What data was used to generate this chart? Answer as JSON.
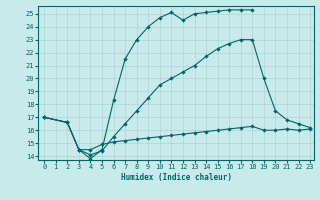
{
  "xlabel": "Humidex (Indice chaleur)",
  "bg_color": "#c8eaea",
  "grid_color": "#a8cccc",
  "line_color": "#006666",
  "spine_color": "#006666",
  "xlim_min": -0.5,
  "xlim_max": 23.3,
  "ylim_min": 13.7,
  "ylim_max": 25.6,
  "yticks": [
    14,
    15,
    16,
    17,
    18,
    19,
    20,
    21,
    22,
    23,
    24,
    25
  ],
  "xticks": [
    0,
    1,
    2,
    3,
    4,
    5,
    6,
    7,
    8,
    9,
    10,
    11,
    12,
    13,
    14,
    15,
    16,
    17,
    18,
    19,
    20,
    21,
    22,
    23
  ],
  "line1_x": [
    0,
    2,
    3,
    4,
    5,
    6,
    7,
    8,
    9,
    10,
    11,
    12,
    13,
    14,
    15,
    16,
    17,
    18,
    19,
    20,
    21,
    22,
    23
  ],
  "line1_y": [
    17.0,
    16.6,
    14.5,
    14.5,
    14.9,
    15.1,
    15.2,
    15.3,
    15.4,
    15.5,
    15.6,
    15.7,
    15.8,
    15.9,
    16.0,
    16.1,
    16.2,
    16.3,
    16.0,
    16.0,
    16.1,
    16.0,
    16.1
  ],
  "line2_x": [
    0,
    2,
    3,
    4,
    5,
    6,
    7,
    8,
    9,
    10,
    11,
    12,
    13,
    14,
    15,
    16,
    17,
    18,
    19,
    20,
    21,
    22,
    23
  ],
  "line2_y": [
    17.0,
    16.6,
    14.5,
    14.1,
    14.4,
    15.5,
    16.5,
    17.5,
    18.5,
    19.5,
    20.0,
    20.5,
    21.0,
    21.7,
    22.3,
    22.7,
    23.0,
    23.0,
    20.0,
    17.5,
    16.8,
    16.5,
    16.2
  ],
  "line3_x": [
    0,
    2,
    3,
    4,
    5,
    6,
    7,
    8,
    9,
    10,
    11,
    12,
    13,
    14,
    15,
    16,
    17,
    18
  ],
  "line3_y": [
    17.0,
    16.6,
    14.5,
    13.8,
    14.5,
    18.3,
    21.5,
    23.0,
    24.0,
    24.7,
    25.1,
    24.5,
    25.0,
    25.1,
    25.2,
    25.3,
    25.3,
    25.3
  ]
}
